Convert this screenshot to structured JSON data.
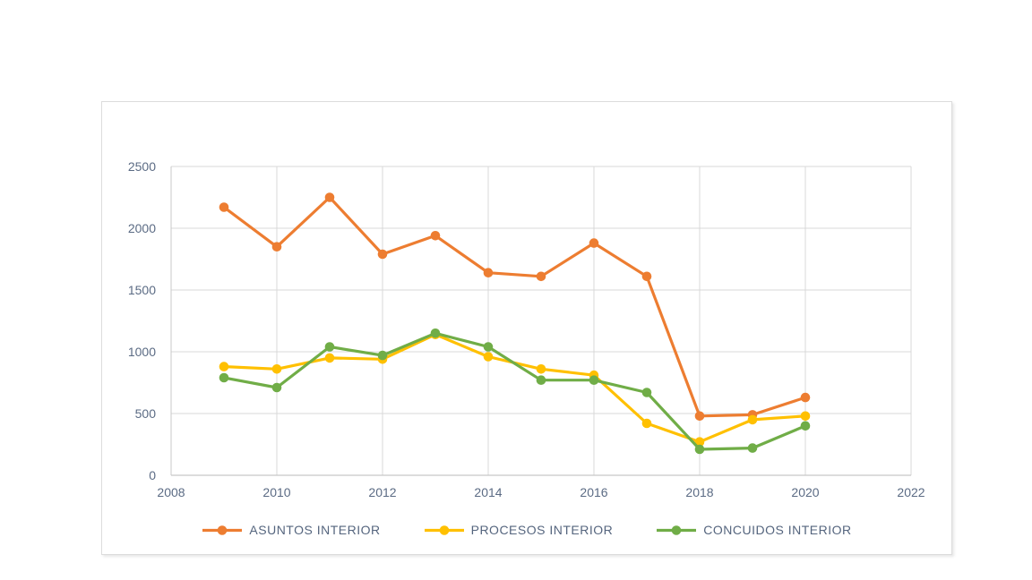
{
  "chart_data": {
    "type": "line",
    "x": [
      2009,
      2010,
      2011,
      2012,
      2013,
      2014,
      2015,
      2016,
      2017,
      2018,
      2019,
      2020
    ],
    "series": [
      {
        "name": "ASUNTOS INTERIOR",
        "color": "#ED7D31",
        "values": [
          2170,
          1850,
          2250,
          1790,
          1940,
          1640,
          1610,
          1880,
          1610,
          480,
          490,
          630
        ]
      },
      {
        "name": "PROCESOS INTERIOR",
        "color": "#FFC000",
        "values": [
          880,
          860,
          950,
          940,
          1140,
          960,
          860,
          810,
          420,
          270,
          450,
          480
        ]
      },
      {
        "name": "CONCUIDOS INTERIOR",
        "color": "#70AD47",
        "values": [
          790,
          710,
          1040,
          970,
          1150,
          1040,
          770,
          770,
          670,
          210,
          220,
          400
        ]
      }
    ],
    "xlim": [
      2008,
      2022
    ],
    "ylim": [
      0,
      2500
    ],
    "x_ticks": [
      2008,
      2010,
      2012,
      2014,
      2016,
      2018,
      2020,
      2022
    ],
    "y_ticks": [
      0,
      500,
      1000,
      1500,
      2000,
      2500
    ],
    "grid": true,
    "legend_position": "bottom",
    "colors": {
      "gridline": "#D9D9D9",
      "axis_line": "#C8C8C8",
      "axis_label": "#5B6B84",
      "legend_label": "#55657E",
      "background": "#FFFFFF"
    }
  }
}
